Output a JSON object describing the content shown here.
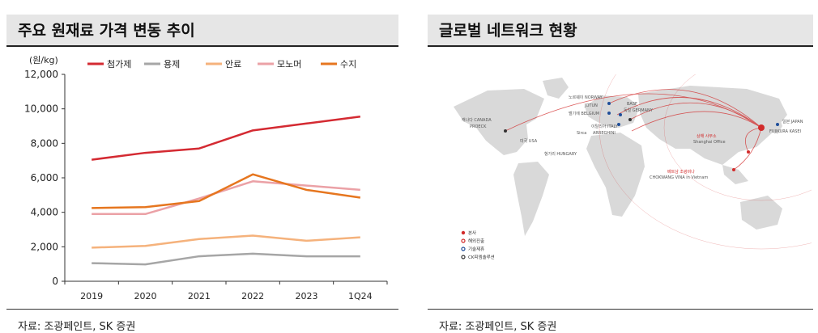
{
  "left": {
    "title": "주요 원재료 가격 변동 추이",
    "source": "자료: 조광페인트, SK 증권"
  },
  "right": {
    "title": "글로벌 네트워크 현황",
    "source": "자료: 조광페인트, SK 증권",
    "map_labels": {
      "canada": "캐나다 CANADA",
      "proeck": "PROECK",
      "usa": "미국 USA",
      "norway": "노르웨이 NORWAY",
      "jotun": "JOTUN",
      "belgium": "벨기에 BELGIUM",
      "germany": "독일 GERMANY",
      "basf": "BASF",
      "italy": "이탈리아 ITALY",
      "sirca": "Sirca",
      "arreghini": "ARREGHINI",
      "hungary": "헝가리 HUNGARY",
      "japan": "일본 JAPAN",
      "fujikura": "FUJIKURA KASEI",
      "shanghai": "상해 사무소",
      "shanghai_en": "Shanghai Office",
      "vietnam": "베트남 조광비나",
      "vietnam_en": "CHOKWANG VINA in Vietnam"
    },
    "legend": [
      "본사",
      "해외진출",
      "기술제휴",
      "CK피엠솔루션"
    ]
  },
  "colors": {
    "첨가제": "#d42a32",
    "용제": "#a6a6a6",
    "안료": "#f5b27c",
    "모노머": "#eba1a6",
    "수지": "#e6761f",
    "map_land": "#d9d9d9",
    "map_red": "#d22b2b",
    "map_blue": "#1f4e9a"
  },
  "chart_data": {
    "type": "line",
    "title": "주요 원재료 가격 변동 추이",
    "ylabel": "(원/kg)",
    "xlabel": "",
    "categories": [
      "2019",
      "2020",
      "2021",
      "2022",
      "2023",
      "1Q24"
    ],
    "ylim": [
      0,
      12000
    ],
    "yticks": [
      0,
      2000,
      4000,
      6000,
      8000,
      10000,
      12000
    ],
    "ytick_labels": [
      "0",
      "2,000",
      "4,000",
      "6,000",
      "8,000",
      "10,000",
      "12,000"
    ],
    "legend_position": "top",
    "series": [
      {
        "name": "첨가제",
        "values": [
          7050,
          7450,
          7700,
          8750,
          9150,
          9550
        ]
      },
      {
        "name": "용제",
        "values": [
          1050,
          980,
          1450,
          1600,
          1450,
          1450
        ]
      },
      {
        "name": "안료",
        "values": [
          1950,
          2050,
          2450,
          2650,
          2350,
          2550
        ]
      },
      {
        "name": "모노머",
        "values": [
          3900,
          3900,
          4800,
          5800,
          5550,
          5300
        ]
      },
      {
        "name": "수지",
        "values": [
          4250,
          4300,
          4650,
          6200,
          5300,
          4850
        ]
      }
    ]
  }
}
